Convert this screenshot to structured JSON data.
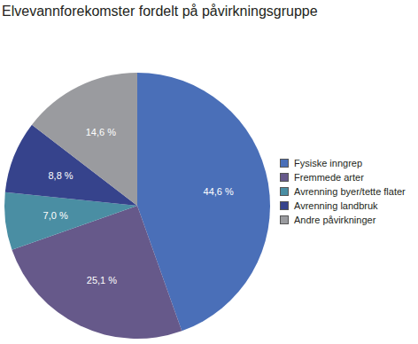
{
  "chart_data": {
    "type": "pie",
    "title": "Elvevannforekomster fordelt på påvirkningsgruppe",
    "categories": [
      "Fysiske inngrep",
      "Fremmede arter",
      "Avrenning byer/tette flater",
      "Avrenning landbruk",
      "Andre påvirkninger"
    ],
    "values": [
      44.6,
      25.1,
      7.0,
      8.8,
      14.6
    ],
    "value_labels": [
      "44,6 %",
      "25,1 %",
      "7,0 %",
      "8,8 %",
      "14,6 %"
    ],
    "colors": [
      "#4a6fb8",
      "#66598a",
      "#4a8ea3",
      "#36438c",
      "#9a9b9f"
    ],
    "data_labels": true,
    "legend": "right"
  }
}
